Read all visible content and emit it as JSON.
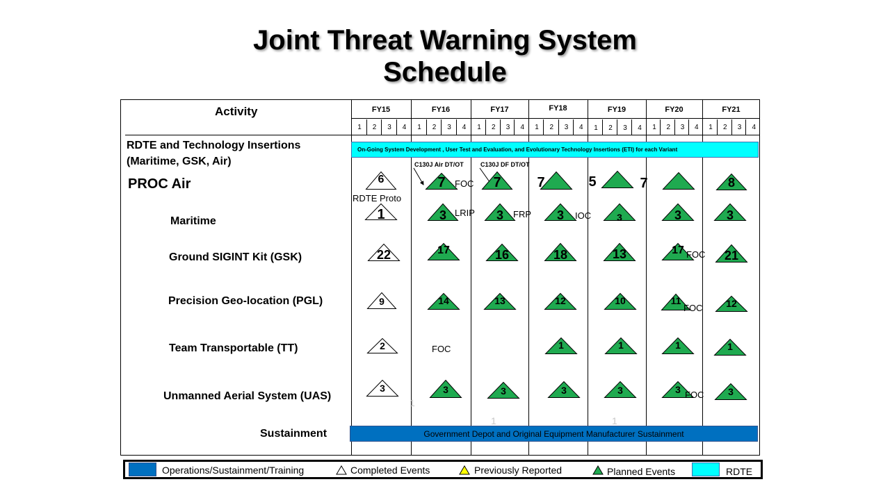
{
  "title_line1": "Joint Threat Warning System",
  "title_line2": "Schedule",
  "header": {
    "activity": "Activity"
  },
  "fiscal_years": [
    "FY15",
    "FY16",
    "FY17",
    "FY18",
    "FY19",
    "FY20",
    "FY21"
  ],
  "quarters": [
    "1",
    "2",
    "3",
    "4"
  ],
  "rows": {
    "rdte": [
      "RDTE and Technology Insertions",
      "(Maritime, GSK, Air)"
    ],
    "proc_air": "PROC Air",
    "maritime": "Maritime",
    "gsk": "Ground SIGINT Kit (GSK)",
    "pgl": "Precision Geo-location (PGL)",
    "tt": "Team Transportable (TT)",
    "uas": "Unmanned Aerial System  (UAS)",
    "sustainment": "Sustainment"
  },
  "bars": {
    "rdte_text": "On-Going System Development , User Test and Evaluation,  and Evolutionary  Technology Insertions (ETI)  for each Variant",
    "sustainment_text": "Government Depot and Original Equipment Manufacturer Sustainment"
  },
  "colors": {
    "planned": "#1faa50",
    "completed": "#ffffff",
    "previously_reported": "#ffff00",
    "ops_sustainment": "#0070c0",
    "rdte": "#00ffff"
  },
  "annotations": {
    "c130j_air": "C130J Air DT/OT",
    "c130j_df": "C130J DF DT/OT",
    "rdte_proto": "RDTE Proto",
    "foc": "FOC",
    "lrip": "LRIP",
    "frp": "FRP",
    "ioc": "IOC",
    "faint_one": "1"
  },
  "events": {
    "proc_air": [
      "6",
      "7",
      "7",
      "7",
      "5",
      "7",
      "8"
    ],
    "maritime": [
      "1",
      "3",
      "3",
      "3",
      "3",
      "3",
      "3"
    ],
    "gsk": [
      "22",
      "17",
      "16",
      "18",
      "13",
      "17",
      "21"
    ],
    "pgl": [
      "9",
      "14",
      "13",
      "12",
      "10",
      "11",
      "12"
    ],
    "tt": [
      "2",
      "1",
      "1",
      "1",
      "1"
    ],
    "uas": [
      "3",
      "3",
      "3",
      "3",
      "3",
      "3",
      "3"
    ]
  },
  "legend": {
    "ops": "Operations/Sustainment/Training",
    "completed": "Completed Events",
    "previous": "Previously Reported",
    "planned": "Planned Events",
    "rdte": "RDTE"
  },
  "icons": [
    "white-triangle-icon",
    "yellow-triangle-icon",
    "green-triangle-icon",
    "arrow-icon"
  ]
}
